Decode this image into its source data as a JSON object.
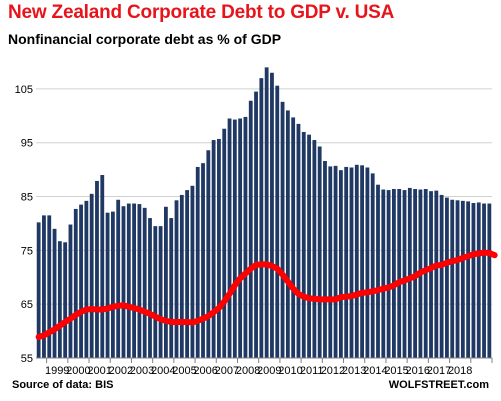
{
  "chart_data": {
    "type": "bar",
    "title": "New Zealand Corporate Debt to GDP v. USA",
    "subtitle": "Nonfinancial corporate debt as % of GDP",
    "source": "Source of data: BIS",
    "brand": "WOLFSTREET.com",
    "ylim": [
      55,
      110
    ],
    "yticks": [
      55,
      65,
      75,
      85,
      95,
      105
    ],
    "xticks": [
      "1999",
      "2000",
      "2001",
      "2002",
      "2003",
      "2004",
      "2005",
      "2006",
      "2007",
      "2008",
      "2009",
      "2010",
      "2011",
      "2012",
      "2013",
      "2014",
      "2015",
      "2016",
      "2017",
      "2018"
    ],
    "x_start": {
      "year": 1998,
      "quarter": 3
    },
    "grid": "horizontal",
    "colors": {
      "bars": "#1f3864",
      "line": "#ff0000",
      "title": "#e8141b",
      "grid": "#d0d0d0"
    },
    "series": [
      {
        "type": "bar",
        "values": [
          80.2,
          81.5,
          81.5,
          79,
          76.7,
          76.5,
          79.8,
          82.7,
          83.5,
          84.2,
          85.5,
          87.9,
          89,
          82,
          82.2,
          84.4,
          83.2,
          83.7,
          83.7,
          83.6,
          82.9,
          81,
          79.5,
          79.5,
          83.1,
          81,
          84.3,
          85.3,
          86.2,
          87,
          90.5,
          91.2,
          93.6,
          95.5,
          95.7,
          97.6,
          99.5,
          99.3,
          99.5,
          99.8,
          102.8,
          104.5,
          107,
          109,
          108,
          105.6,
          102.6,
          101,
          99.7,
          98.5,
          97,
          96.5,
          95.5,
          94.3,
          91.6,
          90.6,
          90.7,
          89.9,
          90.5,
          90.4,
          90.9,
          90.8,
          90.4,
          89.3,
          87.2,
          86.3,
          86.2,
          86.4,
          86.4,
          86.2,
          86.6,
          86.4,
          86.3,
          86.4,
          86,
          86.1,
          85.3,
          84.8,
          84.4,
          84.3,
          84.2,
          84.1,
          83.8,
          83.9,
          83.7,
          83.7
        ]
      },
      {
        "type": "line",
        "values": [
          58.9,
          59.2,
          59.8,
          60.3,
          61,
          61.7,
          62.3,
          63,
          63.6,
          64,
          64.1,
          64,
          64,
          64.2,
          64.5,
          64.7,
          64.8,
          64.5,
          64.3,
          64,
          63.6,
          63.2,
          62.7,
          62.2,
          61.9,
          61.7,
          61.7,
          61.7,
          61.7,
          61.6,
          61.9,
          62.3,
          62.8,
          63.5,
          64.3,
          65.5,
          66.9,
          68.5,
          69.8,
          70.7,
          71.6,
          72.3,
          72.4,
          72.4,
          72.1,
          71.6,
          70.5,
          69.2,
          67.9,
          66.9,
          66.4,
          66.1,
          66,
          65.9,
          65.9,
          65.9,
          65.9,
          66.3,
          66.4,
          66.5,
          66.8,
          67.1,
          67.2,
          67.4,
          67.6,
          67.9,
          68.1,
          68.5,
          69.1,
          69.4,
          69.8,
          70.2,
          70.9,
          71.3,
          71.7,
          72.2,
          72.3,
          72.7,
          73,
          73.2,
          73.6,
          73.9,
          74.3,
          74.4,
          74.6,
          74.5,
          74.1
        ]
      }
    ]
  }
}
